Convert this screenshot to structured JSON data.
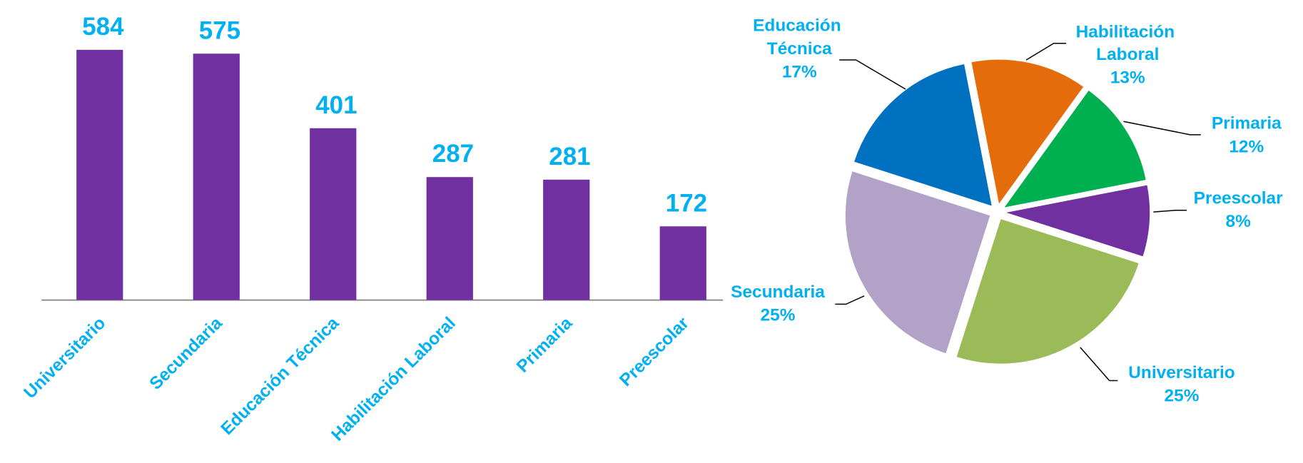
{
  "chart_data": [
    {
      "type": "bar",
      "categories": [
        "Universitario",
        "Secundaria",
        "Educación Técnica",
        "Habilitación Laboral",
        "Primaria",
        "Preescolar"
      ],
      "values": [
        584,
        575,
        401,
        287,
        281,
        172
      ],
      "color": "#7030a0",
      "ylim": [
        0,
        700
      ]
    },
    {
      "type": "pie",
      "categories": [
        "Habilitación Laboral",
        "Primaria",
        "Preescolar",
        "Universitario",
        "Secundaria",
        "Educación Técnica"
      ],
      "values": [
        13,
        12,
        8,
        25,
        25,
        17
      ],
      "value_labels": [
        "13%",
        "12%",
        "8%",
        "25%",
        "25%",
        "17%"
      ],
      "colors": [
        "#e46c0a",
        "#00b050",
        "#7030a0",
        "#9bbb59",
        "#b3a2c7",
        "#0070c0"
      ]
    }
  ]
}
